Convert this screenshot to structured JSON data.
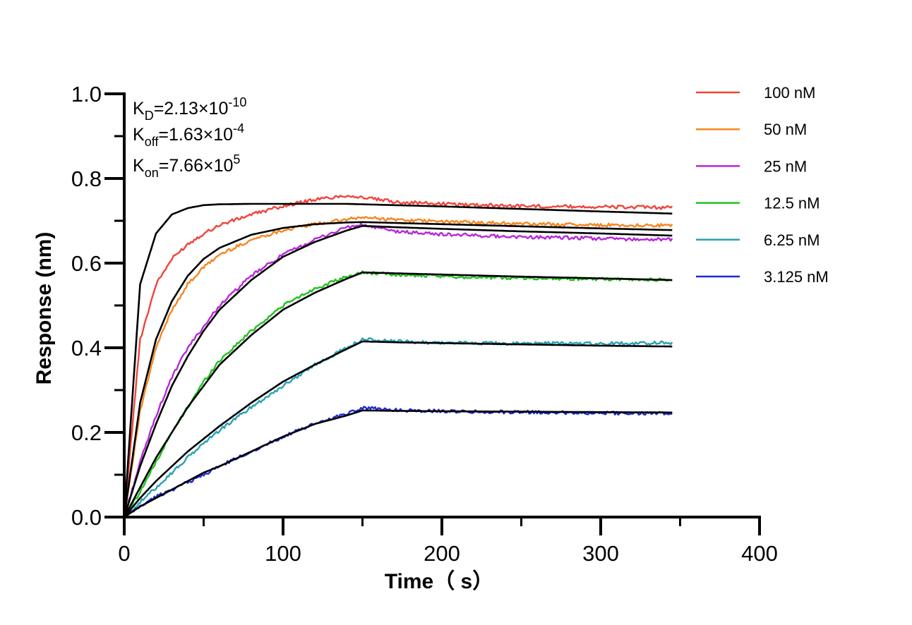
{
  "chart_data": {
    "type": "line",
    "xlabel": "Time（ s）",
    "ylabel": "Response (nm)",
    "xlim": [
      0,
      400
    ],
    "ylim": [
      0,
      1.0
    ],
    "x_ticks": [
      "0",
      "100",
      "200",
      "300",
      "400"
    ],
    "y_ticks": [
      "0.0",
      "0.2",
      "0.4",
      "0.6",
      "0.8",
      "1.0"
    ],
    "grid": false,
    "legend_position": "top-right",
    "annotations": {
      "kd": {
        "label": "K",
        "sub": "D",
        "value": "=2.13×10",
        "exp": "-10"
      },
      "koff": {
        "label": "K",
        "sub": "off",
        "value": "=1.63×10",
        "exp": "-4"
      },
      "kon": {
        "label": "K",
        "sub": "on",
        "value": "=7.66×10",
        "exp": "5"
      }
    },
    "association_end": 150,
    "dissociation_end": 345,
    "series": [
      {
        "name": "100 nM",
        "color": "#f0443c",
        "x": [
          0,
          10,
          20,
          30,
          40,
          50,
          60,
          80,
          100,
          120,
          140,
          150,
          170,
          200,
          250,
          300,
          345
        ],
        "values": [
          0,
          0.42,
          0.55,
          0.61,
          0.645,
          0.67,
          0.69,
          0.715,
          0.735,
          0.75,
          0.76,
          0.755,
          0.745,
          0.74,
          0.735,
          0.733,
          0.731
        ],
        "fit": [
          0,
          0.55,
          0.67,
          0.715,
          0.73,
          0.737,
          0.739,
          0.74,
          0.74,
          0.74,
          0.74,
          0.739,
          0.737,
          0.734,
          0.728,
          0.722,
          0.717
        ]
      },
      {
        "name": "50 nM",
        "color": "#f5861f",
        "x": [
          0,
          10,
          20,
          30,
          40,
          50,
          60,
          80,
          100,
          120,
          140,
          150,
          170,
          200,
          250,
          300,
          345
        ],
        "values": [
          0,
          0.25,
          0.4,
          0.49,
          0.55,
          0.59,
          0.62,
          0.655,
          0.678,
          0.692,
          0.703,
          0.708,
          0.703,
          0.698,
          0.693,
          0.69,
          0.689
        ],
        "fit": [
          0,
          0.27,
          0.42,
          0.51,
          0.57,
          0.61,
          0.636,
          0.667,
          0.683,
          0.692,
          0.696,
          0.697,
          0.695,
          0.692,
          0.687,
          0.682,
          0.678
        ]
      },
      {
        "name": "25 nM",
        "color": "#b628d9",
        "x": [
          0,
          10,
          20,
          30,
          40,
          50,
          60,
          80,
          100,
          120,
          140,
          150,
          170,
          200,
          250,
          300,
          345
        ],
        "values": [
          0,
          0.13,
          0.24,
          0.33,
          0.4,
          0.45,
          0.5,
          0.57,
          0.62,
          0.655,
          0.685,
          0.69,
          0.675,
          0.668,
          0.662,
          0.658,
          0.655
        ],
        "fit": [
          0,
          0.12,
          0.22,
          0.31,
          0.38,
          0.44,
          0.49,
          0.56,
          0.615,
          0.65,
          0.677,
          0.688,
          0.685,
          0.681,
          0.675,
          0.67,
          0.665
        ]
      },
      {
        "name": "12.5 nM",
        "color": "#22c120",
        "x": [
          0,
          10,
          20,
          30,
          40,
          50,
          60,
          80,
          100,
          120,
          140,
          150,
          170,
          200,
          250,
          300,
          345
        ],
        "values": [
          0,
          0.06,
          0.13,
          0.2,
          0.26,
          0.32,
          0.37,
          0.44,
          0.5,
          0.54,
          0.567,
          0.578,
          0.573,
          0.568,
          0.565,
          0.562,
          0.56
        ],
        "fit": [
          0,
          0.07,
          0.14,
          0.2,
          0.26,
          0.31,
          0.36,
          0.43,
          0.49,
          0.53,
          0.563,
          0.578,
          0.576,
          0.573,
          0.568,
          0.564,
          0.56
        ]
      },
      {
        "name": "6.25 nM",
        "color": "#28a1b3",
        "x": [
          0,
          10,
          20,
          30,
          40,
          50,
          60,
          80,
          100,
          120,
          140,
          150,
          170,
          200,
          250,
          300,
          345
        ],
        "values": [
          0,
          0.035,
          0.07,
          0.105,
          0.14,
          0.175,
          0.205,
          0.26,
          0.31,
          0.36,
          0.4,
          0.42,
          0.415,
          0.412,
          0.41,
          0.41,
          0.412
        ],
        "fit": [
          0,
          0.045,
          0.085,
          0.12,
          0.155,
          0.185,
          0.215,
          0.27,
          0.32,
          0.36,
          0.397,
          0.415,
          0.413,
          0.411,
          0.408,
          0.405,
          0.403
        ]
      },
      {
        "name": "3.125 nM",
        "color": "#1a2ad6",
        "x": [
          0,
          10,
          20,
          30,
          40,
          50,
          60,
          80,
          100,
          120,
          140,
          150,
          170,
          200,
          250,
          300,
          345
        ],
        "values": [
          0,
          0.025,
          0.048,
          0.065,
          0.082,
          0.1,
          0.12,
          0.155,
          0.19,
          0.22,
          0.245,
          0.258,
          0.253,
          0.25,
          0.248,
          0.246,
          0.245
        ],
        "fit": [
          0,
          0.025,
          0.045,
          0.065,
          0.085,
          0.105,
          0.12,
          0.155,
          0.19,
          0.22,
          0.24,
          0.252,
          0.251,
          0.25,
          0.249,
          0.248,
          0.247
        ]
      }
    ],
    "fit_color": "#000000"
  }
}
